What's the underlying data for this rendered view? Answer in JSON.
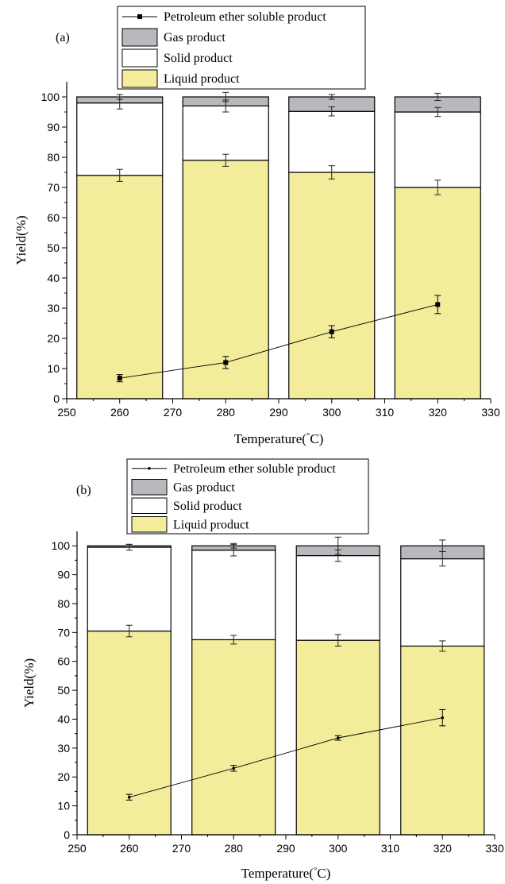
{
  "chart_data": [
    {
      "panel_label": "(a)",
      "type": "bar",
      "stacked": true,
      "xlabel": "Temperature(°C)",
      "ylabel": "Yield(%)",
      "xlim": [
        250,
        330
      ],
      "ylim": [
        0,
        105
      ],
      "x_ticks": [
        250,
        260,
        270,
        280,
        290,
        300,
        310,
        320,
        330
      ],
      "y_ticks": [
        0,
        10,
        20,
        30,
        40,
        50,
        60,
        70,
        80,
        90,
        100
      ],
      "x": [
        260,
        280,
        300,
        320
      ],
      "series": [
        {
          "name": "Liquid product",
          "kind": "bar",
          "color": "#f2ec9b",
          "values": [
            74,
            79,
            75,
            70
          ],
          "error": [
            2,
            2,
            2.2,
            2.4
          ]
        },
        {
          "name": "Solid product",
          "kind": "bar",
          "color": "#ffffff",
          "values": [
            24,
            18,
            20.2,
            25
          ],
          "error": [
            2,
            2,
            1.5,
            1.5
          ]
        },
        {
          "name": "Gas product",
          "kind": "bar",
          "color": "#b8b8bd",
          "values": [
            2,
            3,
            4.8,
            5
          ],
          "error": [
            0.8,
            1.5,
            0.8,
            1.2
          ]
        },
        {
          "name": "Petroleum ether soluble product",
          "kind": "line",
          "color": "#000000",
          "marker": "square",
          "values": [
            6.8,
            12,
            22.2,
            31.2
          ],
          "error": [
            1.2,
            2,
            2,
            3
          ]
        }
      ],
      "legend_position": "top"
    },
    {
      "panel_label": "(b)",
      "type": "bar",
      "stacked": true,
      "xlabel": "Temperature(°C)",
      "ylabel": "Yield(%)",
      "xlim": [
        250,
        330
      ],
      "ylim": [
        0,
        105
      ],
      "x_ticks": [
        250,
        260,
        270,
        280,
        290,
        300,
        310,
        320,
        330
      ],
      "y_ticks": [
        0,
        10,
        20,
        30,
        40,
        50,
        60,
        70,
        80,
        90,
        100
      ],
      "x": [
        260,
        280,
        300,
        320
      ],
      "series": [
        {
          "name": "Liquid product",
          "kind": "bar",
          "color": "#f2ec9b",
          "values": [
            70.5,
            67.5,
            67.3,
            65.3
          ],
          "error": [
            2,
            1.5,
            2,
            1.8
          ]
        },
        {
          "name": "Solid product",
          "kind": "bar",
          "color": "#ffffff",
          "values": [
            29,
            31,
            29.3,
            30.2
          ],
          "error": [
            1,
            2,
            2,
            2.5
          ]
        },
        {
          "name": "Gas product",
          "kind": "bar",
          "color": "#b8b8bd",
          "values": [
            0.5,
            1.5,
            3.4,
            4.5
          ],
          "error": [
            0.5,
            0.8,
            3,
            2
          ]
        },
        {
          "name": "Petroleum ether soluble product",
          "kind": "line",
          "color": "#000000",
          "marker": "dot",
          "values": [
            13,
            23,
            33.5,
            40.5
          ],
          "error": [
            1,
            1,
            0.8,
            2.8
          ]
        }
      ],
      "legend_position": "top"
    }
  ]
}
